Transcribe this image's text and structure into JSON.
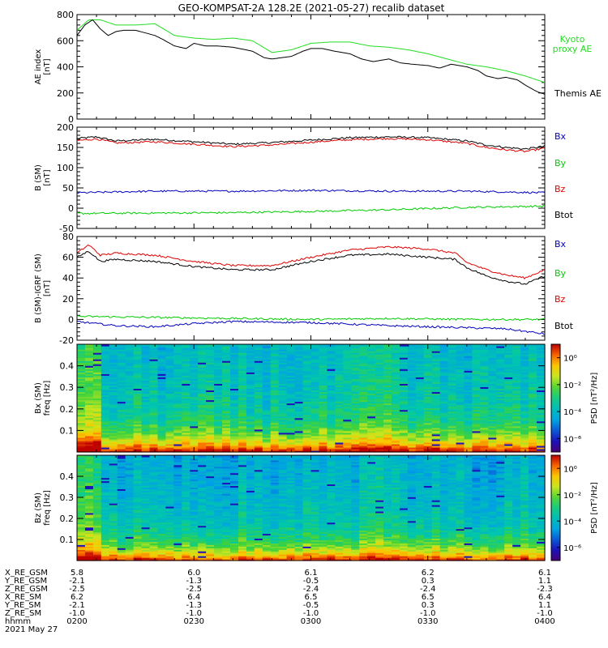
{
  "title": "GEO-KOMPSAT-2A 128.2E (2021-05-27) recalib dataset",
  "colors": {
    "black": "#000000",
    "red": "#dd0000",
    "green": "#00cc00",
    "blue": "#0000bb",
    "kyoto": "#22dd22"
  },
  "chart_data": [
    {
      "type": "line",
      "ylabel": [
        "AE index",
        "[nT]"
      ],
      "ylim": [
        0,
        800
      ],
      "yticks": [
        "0",
        "200",
        "400",
        "600",
        "800"
      ],
      "xlim": [
        0,
        120
      ],
      "legend": [
        {
          "name": "Kyoto\nproxy AE",
          "color": "#22dd22",
          "pos": "top-right"
        },
        {
          "name": "Themis AE",
          "color": "#000000",
          "pos": "bottom-right"
        }
      ],
      "series": [
        {
          "name": "Kyoto proxy AE",
          "color": "#22dd22",
          "x": [
            0,
            3,
            6,
            10,
            15,
            20,
            25,
            30,
            35,
            40,
            45,
            50,
            55,
            60,
            65,
            70,
            75,
            80,
            85,
            90,
            95,
            100,
            105,
            110,
            115,
            120
          ],
          "y": [
            680,
            760,
            760,
            720,
            720,
            730,
            640,
            620,
            610,
            620,
            600,
            510,
            530,
            580,
            590,
            590,
            560,
            550,
            530,
            500,
            460,
            420,
            400,
            370,
            330,
            280
          ]
        },
        {
          "name": "Themis AE",
          "color": "#000000",
          "x": [
            0,
            2,
            4,
            6,
            8,
            10,
            12,
            15,
            20,
            22,
            25,
            28,
            30,
            33,
            36,
            40,
            45,
            48,
            50,
            55,
            58,
            60,
            63,
            66,
            70,
            73,
            76,
            80,
            83,
            86,
            90,
            93,
            96,
            100,
            103,
            105,
            108,
            110,
            113,
            115,
            118,
            120
          ],
          "y": [
            640,
            720,
            760,
            690,
            640,
            670,
            680,
            680,
            640,
            610,
            560,
            540,
            580,
            560,
            560,
            550,
            520,
            470,
            460,
            480,
            520,
            540,
            540,
            520,
            500,
            460,
            440,
            460,
            430,
            420,
            410,
            390,
            420,
            400,
            370,
            330,
            310,
            320,
            300,
            260,
            210,
            190
          ]
        }
      ]
    },
    {
      "type": "line",
      "ylabel": [
        "B (SM)",
        "[nT]"
      ],
      "ylim": [
        -50,
        200
      ],
      "yticks": [
        "-50",
        "0",
        "50",
        "100",
        "150",
        "200"
      ],
      "xlim": [
        0,
        120
      ],
      "legend": [
        {
          "name": "Bx",
          "color": "#0000bb"
        },
        {
          "name": "By",
          "color": "#00cc00"
        },
        {
          "name": "Bz",
          "color": "#dd0000"
        },
        {
          "name": "Btot",
          "color": "#000000"
        }
      ],
      "series": [
        {
          "name": "Btot",
          "color": "#000000",
          "x": [
            0,
            5,
            10,
            20,
            30,
            40,
            50,
            60,
            70,
            80,
            90,
            100,
            105,
            110,
            115,
            120
          ],
          "y": [
            172,
            176,
            166,
            170,
            164,
            158,
            162,
            168,
            174,
            176,
            174,
            166,
            156,
            150,
            146,
            153
          ]
        },
        {
          "name": "Bz",
          "color": "#dd0000",
          "x": [
            0,
            5,
            10,
            20,
            30,
            40,
            50,
            60,
            70,
            80,
            90,
            100,
            105,
            110,
            115,
            120
          ],
          "y": [
            167,
            171,
            161,
            164,
            158,
            152,
            156,
            163,
            169,
            172,
            169,
            160,
            150,
            144,
            140,
            148
          ]
        },
        {
          "name": "Bx",
          "color": "#0000bb",
          "x": [
            0,
            20,
            40,
            60,
            80,
            100,
            120
          ],
          "y": [
            38,
            42,
            42,
            44,
            42,
            42,
            38
          ]
        },
        {
          "name": "By",
          "color": "#00cc00",
          "x": [
            0,
            20,
            40,
            60,
            80,
            100,
            120
          ],
          "y": [
            -13,
            -12,
            -11,
            -8,
            -4,
            2,
            5
          ]
        }
      ]
    },
    {
      "type": "line",
      "ylabel": [
        "B (SM)-IGRF (SM)",
        "[nT]"
      ],
      "ylim": [
        -20,
        80
      ],
      "yticks": [
        "-20",
        "0",
        "20",
        "40",
        "60",
        "80"
      ],
      "xlim": [
        0,
        120
      ],
      "legend": [
        {
          "name": "Bx",
          "color": "#0000bb"
        },
        {
          "name": "By",
          "color": "#00cc00"
        },
        {
          "name": "Bz",
          "color": "#dd0000"
        },
        {
          "name": "Btot",
          "color": "#000000"
        }
      ],
      "series": [
        {
          "name": "Bz",
          "color": "#dd0000",
          "x": [
            0,
            3,
            6,
            10,
            20,
            30,
            40,
            50,
            60,
            70,
            80,
            90,
            97,
            100,
            105,
            110,
            115,
            120
          ],
          "y": [
            64,
            72,
            62,
            64,
            62,
            56,
            52,
            52,
            60,
            67,
            70,
            68,
            64,
            55,
            48,
            43,
            40,
            48
          ]
        },
        {
          "name": "Btot",
          "color": "#000000",
          "x": [
            0,
            3,
            6,
            10,
            20,
            30,
            40,
            50,
            60,
            70,
            80,
            90,
            97,
            100,
            105,
            110,
            115,
            120
          ],
          "y": [
            60,
            66,
            56,
            58,
            56,
            51,
            48,
            48,
            56,
            62,
            63,
            60,
            58,
            50,
            42,
            37,
            34,
            42
          ]
        },
        {
          "name": "By",
          "color": "#00cc00",
          "x": [
            0,
            20,
            40,
            60,
            80,
            100,
            120
          ],
          "y": [
            3,
            2,
            1,
            0,
            1,
            0,
            0
          ]
        },
        {
          "name": "Bx",
          "color": "#0000bb",
          "x": [
            0,
            10,
            20,
            30,
            40,
            60,
            80,
            100,
            110,
            120
          ],
          "y": [
            -2,
            -6,
            -7,
            -4,
            -2,
            -3,
            -6,
            -8,
            -9,
            -14
          ]
        }
      ]
    },
    {
      "type": "heatmap",
      "ylabel": [
        "Bx (SM)",
        "freq [Hz]"
      ],
      "ylim": [
        0,
        0.5
      ],
      "yticks": [
        "0.1",
        "0.2",
        "0.3",
        "0.4"
      ],
      "ytick_values": [
        0.1,
        0.2,
        0.3,
        0.4
      ],
      "colorbar": {
        "label": "PSD [nT²/Hz]",
        "ticks": [
          "10⁰",
          "10⁻²",
          "10⁻⁴",
          "10⁻⁶"
        ],
        "log_range": [
          -7,
          1
        ]
      }
    },
    {
      "type": "heatmap",
      "ylabel": [
        "Bz (SM)",
        "freq [Hz]"
      ],
      "ylim": [
        0,
        0.5
      ],
      "yticks": [
        "0.1",
        "0.2",
        "0.3",
        "0.4"
      ],
      "ytick_values": [
        0.1,
        0.2,
        0.3,
        0.4
      ],
      "colorbar": {
        "label": "PSD [nT²/Hz]",
        "ticks": [
          "10⁰",
          "10⁻²",
          "10⁻⁴",
          "10⁻⁶"
        ],
        "log_range": [
          -7,
          1
        ]
      }
    }
  ],
  "ephemeris": {
    "labels": [
      "X_RE_GSM",
      "Y_RE_GSM",
      "Z_RE_GSM",
      "X_RE_SM",
      "Y_RE_SM",
      "Z_RE_SM",
      "hhmm"
    ],
    "columns": [
      [
        "5.8",
        "-2.1",
        "-2.5",
        "6.2",
        "-2.1",
        "-1.0",
        "0200"
      ],
      [
        "6.0",
        "-1.3",
        "-2.5",
        "6.4",
        "-1.3",
        "-1.0",
        "0230"
      ],
      [
        "6.1",
        "-0.5",
        "-2.4",
        "6.5",
        "-0.5",
        "-1.0",
        "0300"
      ],
      [
        "6.2",
        "0.3",
        "-2.4",
        "6.5",
        "0.3",
        "-1.0",
        "0330"
      ],
      [
        "6.1",
        "1.1",
        "-2.3",
        "6.4",
        "1.1",
        "-1.0",
        "0400"
      ]
    ],
    "date": "2021 May 27"
  }
}
